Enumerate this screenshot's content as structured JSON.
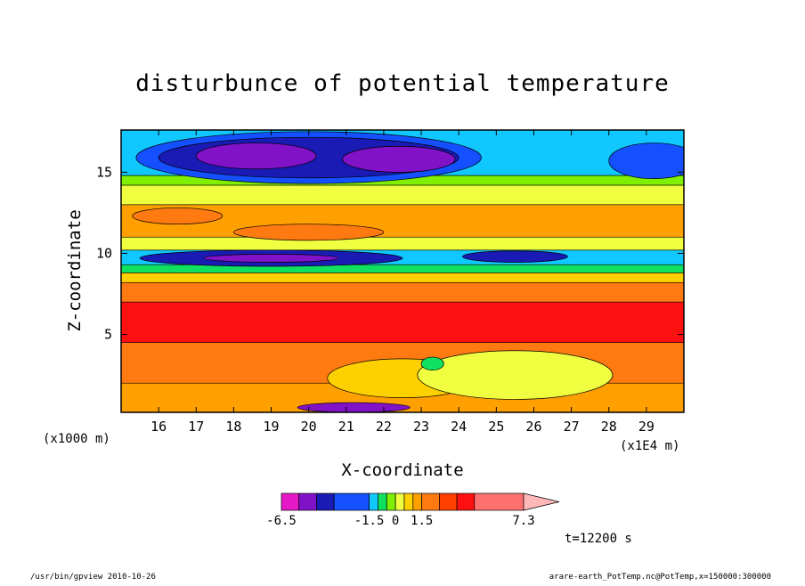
{
  "chart_data": {
    "type": "heatmap",
    "title": "disturbunce of potential temperature",
    "xlabel": "X-coordinate",
    "ylabel": "Z-coordinate",
    "x_unit": "(x1E4 m)",
    "y_unit": "(x1000 m)",
    "x_ticks": [
      "16",
      "17",
      "18",
      "19",
      "20",
      "21",
      "22",
      "23",
      "24",
      "25",
      "26",
      "27",
      "28",
      "29"
    ],
    "y_ticks": [
      "5",
      "10",
      "15"
    ],
    "xlim": [
      15,
      30
    ],
    "ylim": [
      0.2,
      17.6
    ],
    "time_label": "t=12200 s",
    "colorbar": {
      "tick_labels": [
        "-6.5",
        "-1.5",
        "0",
        "1.5",
        "7.3"
      ],
      "levels": [
        -6.5,
        -5.5,
        -4.5,
        -3.5,
        -1.5,
        -1.0,
        -0.5,
        0,
        0.5,
        1.0,
        1.5,
        2.5,
        3.5,
        4.5,
        7.3
      ],
      "colors": [
        "#e619c8",
        "#8212c8",
        "#1a1ab4",
        "#1450ff",
        "#10c8ff",
        "#10e060",
        "#80f000",
        "#f0ff40",
        "#ffd000",
        "#ffa000",
        "#ff7a10",
        "#ff4000",
        "#ff1010",
        "#ff7070",
        "#ffb8b8"
      ]
    },
    "bands": [
      {
        "z_bottom": 0.2,
        "z_top": 2.0,
        "value": 2.0,
        "color": "#ffa000"
      },
      {
        "z_bottom": 2.0,
        "z_top": 4.5,
        "value": 3.0,
        "color": "#ff7a10"
      },
      {
        "z_bottom": 4.5,
        "z_top": 7.0,
        "value": 4.0,
        "color": "#ff1010"
      },
      {
        "z_bottom": 7.0,
        "z_top": 8.2,
        "value": 3.0,
        "color": "#ff7a10"
      },
      {
        "z_bottom": 8.2,
        "z_top": 8.8,
        "value": 1.0,
        "color": "#ffd000"
      },
      {
        "z_bottom": 8.8,
        "z_top": 9.3,
        "value": -0.5,
        "color": "#10e060"
      },
      {
        "z_bottom": 9.3,
        "z_top": 10.2,
        "value": -1.5,
        "color": "#10c8ff"
      },
      {
        "z_bottom": 10.2,
        "z_top": 11.0,
        "value": 0.5,
        "color": "#f0ff40"
      },
      {
        "z_bottom": 11.0,
        "z_top": 13.0,
        "value": 1.5,
        "color": "#ffa000"
      },
      {
        "z_bottom": 13.0,
        "z_top": 14.2,
        "value": 0.3,
        "color": "#f0ff40"
      },
      {
        "z_bottom": 14.2,
        "z_top": 14.8,
        "value": -0.5,
        "color": "#80f000"
      },
      {
        "z_bottom": 14.8,
        "z_top": 17.6,
        "value": -1.5,
        "color": "#10c8ff"
      }
    ],
    "blobs": [
      {
        "x": 20.0,
        "z": 15.9,
        "rx": 4.6,
        "rz": 1.6,
        "value": -3.5,
        "color": "#1450ff"
      },
      {
        "x": 20.0,
        "z": 15.9,
        "rx": 4.0,
        "rz": 1.25,
        "value": -4.5,
        "color": "#1a1ab4"
      },
      {
        "x": 18.6,
        "z": 16.0,
        "rx": 1.6,
        "rz": 0.8,
        "value": -5.5,
        "color": "#8212c8"
      },
      {
        "x": 22.4,
        "z": 15.8,
        "rx": 1.5,
        "rz": 0.8,
        "value": -5.5,
        "color": "#8212c8"
      },
      {
        "x": 29.2,
        "z": 15.7,
        "rx": 1.2,
        "rz": 1.1,
        "value": -3.5,
        "color": "#1450ff"
      },
      {
        "x": 19.0,
        "z": 9.7,
        "rx": 3.5,
        "rz": 0.5,
        "value": -4.5,
        "color": "#1a1ab4"
      },
      {
        "x": 19.0,
        "z": 9.7,
        "rx": 1.8,
        "rz": 0.25,
        "value": -5.5,
        "color": "#8212c8"
      },
      {
        "x": 25.5,
        "z": 9.8,
        "rx": 1.4,
        "rz": 0.35,
        "value": -4.5,
        "color": "#1a1ab4"
      },
      {
        "x": 20.0,
        "z": 11.3,
        "rx": 2.0,
        "rz": 0.5,
        "value": 2.5,
        "color": "#ff7a10"
      },
      {
        "x": 16.5,
        "z": 12.3,
        "rx": 1.2,
        "rz": 0.5,
        "value": 2.5,
        "color": "#ff7a10"
      },
      {
        "x": 22.5,
        "z": 2.3,
        "rx": 2.0,
        "rz": 1.2,
        "value": 1.0,
        "color": "#ffd000"
      },
      {
        "x": 25.5,
        "z": 2.5,
        "rx": 2.6,
        "rz": 1.5,
        "value": 0.5,
        "color": "#f0ff40"
      },
      {
        "x": 23.3,
        "z": 3.2,
        "rx": 0.3,
        "rz": 0.4,
        "value": -0.5,
        "color": "#10e060"
      },
      {
        "x": 21.2,
        "z": 0.5,
        "rx": 1.5,
        "rz": 0.3,
        "value": -5.5,
        "color": "#8212c8"
      }
    ]
  },
  "footer": {
    "left": "/usr/bin/gpview  2010-10-26",
    "right": "arare-earth_PotTemp.nc@PotTemp,x=150000:300000"
  }
}
